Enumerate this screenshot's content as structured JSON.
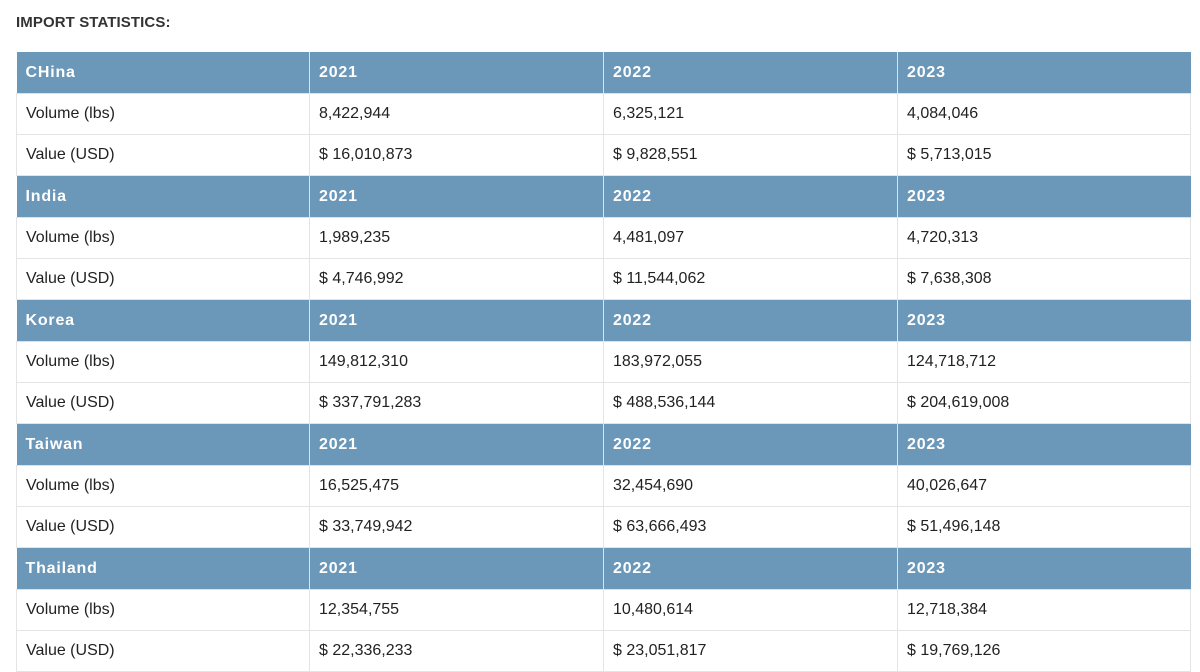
{
  "section_title": "IMPORT STATISTICS:",
  "groups": [
    {
      "country": "CHina",
      "years": [
        "2021",
        "2022",
        "2023"
      ],
      "rows": [
        {
          "label": "Volume (lbs)",
          "values": [
            "8,422,944",
            "6,325,121",
            "4,084,046"
          ]
        },
        {
          "label": "Value (USD)",
          "values": [
            "$ 16,010,873",
            "$ 9,828,551",
            "$ 5,713,015"
          ]
        }
      ]
    },
    {
      "country": "India",
      "years": [
        "2021",
        "2022",
        "2023"
      ],
      "rows": [
        {
          "label": "Volume (lbs)",
          "values": [
            "1,989,235",
            "4,481,097",
            "4,720,313"
          ]
        },
        {
          "label": "Value (USD)",
          "values": [
            "$ 4,746,992",
            "$ 11,544,062",
            "$ 7,638,308"
          ]
        }
      ]
    },
    {
      "country": "Korea",
      "years": [
        "2021",
        "2022",
        "2023"
      ],
      "rows": [
        {
          "label": "Volume (lbs)",
          "values": [
            "149,812,310",
            "183,972,055",
            "124,718,712"
          ]
        },
        {
          "label": "Value (USD)",
          "values": [
            "$ 337,791,283",
            "$ 488,536,144",
            "$ 204,619,008"
          ]
        }
      ]
    },
    {
      "country": "Taiwan",
      "years": [
        "2021",
        "2022",
        "2023"
      ],
      "rows": [
        {
          "label": "Volume (lbs)",
          "values": [
            "16,525,475",
            "32,454,690",
            "40,026,647"
          ]
        },
        {
          "label": "Value (USD)",
          "values": [
            "$ 33,749,942",
            "$ 63,666,493",
            "$ 51,496,148"
          ]
        }
      ]
    },
    {
      "country": "Thailand",
      "years": [
        "2021",
        "2022",
        "2023"
      ],
      "rows": [
        {
          "label": "Volume (lbs)",
          "values": [
            "12,354,755",
            "10,480,614",
            "12,718,384"
          ]
        },
        {
          "label": "Value (USD)",
          "values": [
            "$ 22,336,233",
            "$ 23,051,817",
            "$ 19,769,126"
          ]
        }
      ]
    }
  ],
  "colors": {
    "header_background": "#6b97b8",
    "header_text": "#ffffff",
    "cell_border": "#e4e4e4",
    "body_text": "#222222"
  }
}
